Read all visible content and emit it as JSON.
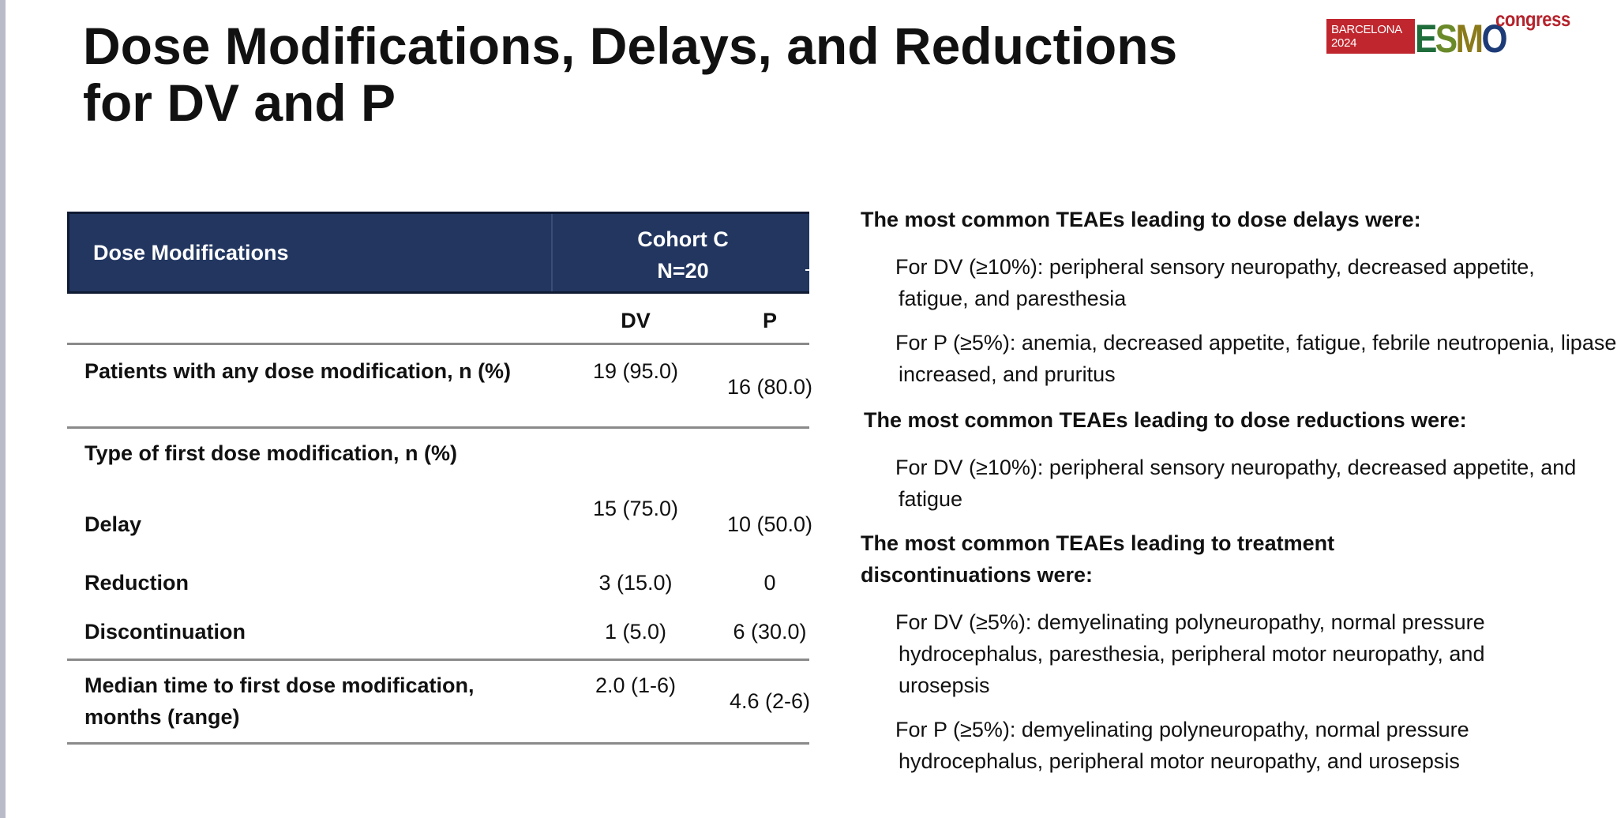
{
  "title": {
    "line1": "Dose Modifications, Delays, and Reductions",
    "line2": "for DV and P"
  },
  "logo": {
    "city": "BARCELONA",
    "year": "2024",
    "brand_e": "E",
    "brand_s": "S",
    "brand_m": "M",
    "brand_o": "O",
    "suffix": "congress"
  },
  "table": {
    "header_label": "Dose Modifications",
    "cohort": "Cohort C",
    "n": "N=20",
    "col_dv": "DV",
    "col_p": "P",
    "rows": [
      {
        "label": "Patients with any dose modification, n (%)",
        "dv": "19 (95.0)",
        "p": "16 (80.0)"
      },
      {
        "label": "Type of first dose modification, n (%)",
        "dv": "",
        "p": ""
      },
      {
        "label": "Delay",
        "dv": "15 (75.0)",
        "p": "10 (50.0)"
      },
      {
        "label": "Reduction",
        "dv": "3 (15.0)",
        "p": "0"
      },
      {
        "label": "Discontinuation",
        "dv": "1 (5.0)",
        "p": "6 (30.0)"
      },
      {
        "label": "Median time to first dose modification, months (range)",
        "dv": "2.0 (1-6)",
        "p": "4.6 (2-6)"
      }
    ]
  },
  "notes": {
    "delays_heading": "The most common TEAEs leading to dose delays were:",
    "delays_dv": "For DV (≥10%): peripheral sensory neuropathy, decreased appetite, fatigue, and paresthesia",
    "delays_p": "For P (≥5%): anemia, decreased appetite, fatigue, febrile neutropenia, lipase increased, and pruritus",
    "reductions_heading": "The most common TEAEs leading to dose reductions were:",
    "reductions_dv": "For DV (≥10%): peripheral sensory neuropathy, decreased appetite, and fatigue",
    "discontinuation_heading": "The most common TEAEs leading to treatment discontinuations were:",
    "discontinuation_dv": "For DV (≥5%): demyelinating polyneuropathy, normal pressure hydrocephalus, paresthesia, peripheral motor neuropathy, and urosepsis",
    "discontinuation_p": "For P (≥5%): demyelinating polyneuropathy, normal pressure hydrocephalus, peripheral motor neuropathy, and urosepsis"
  }
}
